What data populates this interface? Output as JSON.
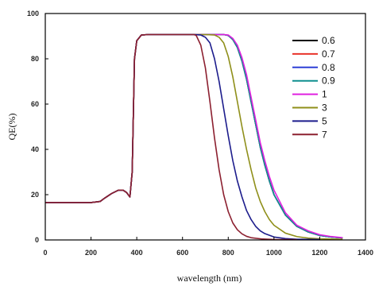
{
  "chart_data": {
    "type": "line",
    "xlabel": "wavelength (nm)",
    "ylabel": "QE(%)",
    "xlim": [
      0,
      1400
    ],
    "ylim": [
      0,
      100
    ],
    "xticks": [
      0,
      200,
      400,
      600,
      800,
      1000,
      1200,
      1400
    ],
    "yticks": [
      0,
      20,
      40,
      60,
      80,
      100
    ],
    "grid": false,
    "legend_position": "top-right",
    "shared_segment": {
      "x": [
        0,
        200,
        240,
        260,
        290,
        320,
        340,
        355,
        370,
        380,
        390,
        400,
        420,
        450,
        500,
        600,
        650
      ],
      "y": [
        16.5,
        16.5,
        17,
        18.5,
        20.5,
        22,
        22,
        21,
        19,
        30,
        80,
        88,
        90.5,
        90.7,
        90.7,
        90.7,
        90.7
      ]
    },
    "series": [
      {
        "name": "0.6",
        "color": "#000000",
        "x": [
          650,
          720,
          760,
          780,
          800,
          820,
          840,
          860,
          880,
          900,
          920,
          940,
          960,
          980,
          1000,
          1050,
          1100,
          1150,
          1200,
          1250,
          1300
        ],
        "y": [
          90.7,
          90.7,
          90.7,
          90.7,
          90.3,
          88.5,
          85,
          79,
          71,
          61,
          51,
          41,
          33,
          26,
          20,
          11,
          6,
          3.5,
          2,
          1.3,
          0.9
        ]
      },
      {
        "name": "0.7",
        "color": "#e8332a",
        "x": [
          650,
          720,
          760,
          780,
          800,
          820,
          840,
          860,
          880,
          900,
          920,
          940,
          960,
          980,
          1000,
          1050,
          1100,
          1150,
          1200,
          1250,
          1300
        ],
        "y": [
          90.7,
          90.7,
          90.7,
          90.7,
          90.3,
          88.5,
          85,
          79,
          71,
          61,
          51,
          41,
          33,
          26,
          20,
          11,
          6,
          3.5,
          2,
          1.3,
          0.9
        ]
      },
      {
        "name": "0.8",
        "color": "#2d3fd6",
        "x": [
          650,
          720,
          760,
          780,
          800,
          820,
          840,
          860,
          880,
          900,
          920,
          940,
          960,
          980,
          1000,
          1050,
          1100,
          1150,
          1200,
          1250,
          1300
        ],
        "y": [
          90.7,
          90.7,
          90.7,
          90.7,
          90.3,
          88.5,
          85,
          79,
          71,
          61,
          51,
          41,
          33,
          26,
          20,
          11,
          6,
          3.5,
          2,
          1.3,
          0.9
        ]
      },
      {
        "name": "0.9",
        "color": "#0f8f8f",
        "x": [
          650,
          720,
          760,
          780,
          800,
          820,
          840,
          860,
          880,
          900,
          920,
          940,
          960,
          980,
          1000,
          1050,
          1100,
          1150,
          1200,
          1250,
          1300
        ],
        "y": [
          90.7,
          90.7,
          90.7,
          90.7,
          90.3,
          88.5,
          85,
          79,
          71,
          61,
          51,
          41,
          33,
          26,
          20,
          11,
          6,
          3.5,
          2,
          1.3,
          0.9
        ]
      },
      {
        "name": "1",
        "color": "#e020e0",
        "x": [
          650,
          720,
          760,
          780,
          800,
          820,
          840,
          860,
          880,
          900,
          920,
          940,
          960,
          980,
          1000,
          1050,
          1100,
          1150,
          1200,
          1250,
          1300
        ],
        "y": [
          90.7,
          90.7,
          90.7,
          90.7,
          90.5,
          89,
          86,
          80.5,
          73,
          63,
          53,
          43,
          35,
          28,
          22,
          12,
          6.5,
          4,
          2.3,
          1.5,
          1
        ]
      },
      {
        "name": "3",
        "color": "#8f8f1a",
        "x": [
          650,
          700,
          740,
          760,
          780,
          800,
          820,
          840,
          860,
          880,
          900,
          920,
          940,
          960,
          980,
          1000,
          1050,
          1100,
          1150,
          1200,
          1300
        ],
        "y": [
          90.7,
          90.7,
          90.5,
          89.5,
          87,
          81,
          72,
          61,
          50,
          40,
          31,
          23,
          17,
          12.5,
          9,
          6.5,
          3,
          1.5,
          0.8,
          0.5,
          0.3
        ]
      },
      {
        "name": "5",
        "color": "#1c1c8c",
        "x": [
          650,
          680,
          700,
          720,
          740,
          760,
          780,
          800,
          820,
          840,
          860,
          880,
          900,
          920,
          940,
          960,
          1000,
          1050,
          1100,
          1200
        ],
        "y": [
          90.7,
          90.5,
          89.5,
          87,
          80,
          70,
          58,
          46,
          35,
          26,
          19,
          13,
          9,
          6,
          4,
          2.8,
          1.3,
          0.6,
          0.3,
          0.2
        ]
      },
      {
        "name": "7",
        "color": "#8c2030",
        "x": [
          650,
          660,
          680,
          700,
          720,
          740,
          760,
          780,
          800,
          820,
          840,
          860,
          880,
          900,
          950,
          1000,
          1100
        ],
        "y": [
          90.7,
          90.3,
          86,
          76,
          61,
          45,
          31,
          20,
          12.5,
          7.5,
          4.5,
          2.7,
          1.6,
          1,
          0.4,
          0.2,
          0.1
        ]
      }
    ]
  }
}
